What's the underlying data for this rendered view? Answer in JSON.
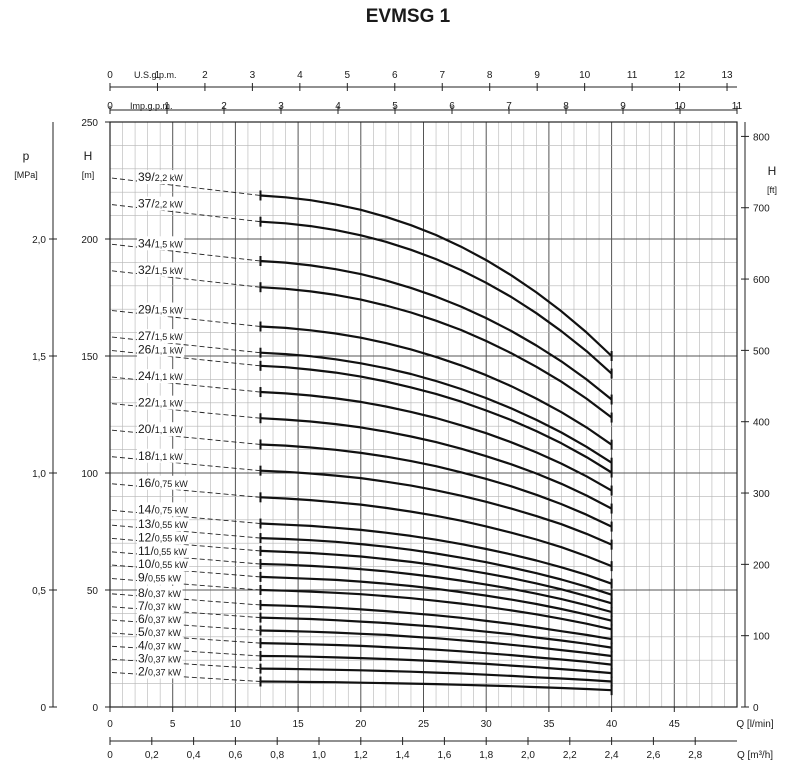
{
  "chart_data": {
    "type": "line",
    "title": "EVMSG 1",
    "x": [
      12,
      14,
      16,
      18,
      20,
      22,
      24,
      26,
      28,
      30,
      32,
      34,
      36,
      38,
      40
    ],
    "xlim": [
      0,
      50
    ],
    "xticks": [
      0,
      5,
      10,
      15,
      20,
      25,
      30,
      35,
      40,
      45
    ],
    "xlabel": "Q [l/min]",
    "ylim": [
      0,
      250
    ],
    "yticks": [
      0,
      50,
      100,
      150,
      200,
      250
    ],
    "ylabel": "H",
    "ylabel_unit": "[m]",
    "grid": true,
    "series": [
      {
        "name": "2/0,37 kW",
        "label_main": "2/",
        "label_power": "0,37 kW",
        "values": [
          10.9,
          10.8,
          10.7,
          10.6,
          10.4,
          10.2,
          10,
          9.8,
          9.5,
          9.2,
          8.9,
          8.5,
          8.1,
          7.7,
          7.2
        ]
      },
      {
        "name": "3/0,37 kW",
        "label_main": "3/",
        "label_power": "0,37 kW",
        "values": [
          16.4,
          16.3,
          16.1,
          15.9,
          15.7,
          15.4,
          15.1,
          14.7,
          14.3,
          13.8,
          13.3,
          12.7,
          12.2,
          11.6,
          10.9
        ]
      },
      {
        "name": "4/0,37 kW",
        "label_main": "4/",
        "label_power": "0,37 kW",
        "values": [
          21.8,
          21.7,
          21.5,
          21.2,
          20.9,
          20.5,
          20.1,
          19.6,
          19,
          18.4,
          17.7,
          17,
          16.2,
          15.4,
          14.5
        ]
      },
      {
        "name": "5/0,37 kW",
        "label_main": "5/",
        "label_power": "0,37 kW",
        "values": [
          27.3,
          27.1,
          26.8,
          26.5,
          26.1,
          25.6,
          25.1,
          24.5,
          23.8,
          23,
          22.2,
          21.2,
          20.3,
          19.3,
          18.1
        ]
      },
      {
        "name": "6/0,37 kW",
        "label_main": "6/",
        "label_power": "0,37 kW",
        "values": [
          32.7,
          32.5,
          32.2,
          31.8,
          31.3,
          30.8,
          30.1,
          29.4,
          28.5,
          27.6,
          26.6,
          25.5,
          24.3,
          23.1,
          21.8
        ]
      },
      {
        "name": "7/0,37 kW",
        "label_main": "7/",
        "label_power": "0,37 kW",
        "values": [
          38.2,
          37.9,
          37.6,
          37.1,
          36.5,
          35.9,
          35.1,
          34.3,
          33.3,
          32.2,
          31.1,
          29.7,
          28.4,
          27,
          25.4
        ]
      },
      {
        "name": "8/0,37 kW",
        "label_main": "8/",
        "label_power": "0,37 kW",
        "values": [
          43.6,
          43.3,
          42.9,
          42.4,
          41.7,
          41,
          40.1,
          39.2,
          38.1,
          36.8,
          35.5,
          34,
          32.4,
          30.8,
          29
        ]
      },
      {
        "name": "9/0,55 kW",
        "label_main": "9/",
        "label_power": "0,55 kW",
        "values": [
          50,
          49.7,
          49.3,
          48.8,
          48.2,
          47.4,
          46.5,
          45.4,
          44.2,
          42.8,
          41.3,
          39.6,
          37.7,
          35.6,
          33.2
        ]
      },
      {
        "name": "10/0,55 kW",
        "label_main": "10/",
        "label_power": "0,55 kW",
        "values": [
          55.6,
          55.2,
          54.8,
          54.3,
          53.6,
          52.7,
          51.7,
          50.5,
          49.1,
          47.6,
          45.9,
          44,
          41.9,
          39.5,
          36.9
        ]
      },
      {
        "name": "11/0,55 kW",
        "label_main": "11/",
        "label_power": "0,55 kW",
        "values": [
          61.1,
          60.8,
          60.3,
          59.7,
          58.9,
          58,
          56.8,
          55.5,
          54,
          52.3,
          50.5,
          48.4,
          46.1,
          43.5,
          40.6
        ]
      },
      {
        "name": "12/0,55 kW",
        "label_main": "12/",
        "label_power": "0,55 kW",
        "values": [
          66.7,
          66.3,
          65.8,
          65.1,
          64.3,
          63.2,
          62,
          60.6,
          58.9,
          57.1,
          55.1,
          52.8,
          50.3,
          47.4,
          44.3
        ]
      },
      {
        "name": "13/0,55 kW",
        "label_main": "13/",
        "label_power": "0,55 kW",
        "values": [
          72.2,
          71.8,
          71.3,
          70.6,
          69.6,
          68.5,
          67.2,
          65.6,
          63.8,
          61.9,
          59.6,
          57.2,
          54.5,
          51.4,
          48
        ]
      },
      {
        "name": "14/0,75 kW",
        "label_main": "14/",
        "label_power": "0,75 kW",
        "values": [
          78.4,
          77.9,
          77.4,
          76.6,
          75.7,
          74.5,
          73.1,
          71.5,
          69.6,
          67.5,
          65.2,
          62.6,
          59.7,
          56.5,
          52.7
        ]
      },
      {
        "name": "16/0,75 kW",
        "label_main": "16/",
        "label_power": "0,75 kW",
        "values": [
          89.6,
          89.1,
          88.4,
          87.5,
          86.5,
          85.1,
          83.5,
          81.7,
          79.6,
          77.2,
          74.5,
          71.6,
          68.3,
          64.5,
          60.2
        ]
      },
      {
        "name": "18/1,1 kW",
        "label_main": "18/",
        "label_power": "1,1 kW",
        "values": [
          101,
          100.5,
          99.8,
          98.9,
          97.8,
          96.3,
          94.6,
          92.6,
          90.3,
          87.7,
          84.8,
          81.6,
          78.1,
          74,
          69.4
        ]
      },
      {
        "name": "20/1,1 kW",
        "label_main": "20/",
        "label_power": "1,1 kW",
        "values": [
          112.2,
          111.7,
          110.9,
          109.9,
          108.6,
          107,
          105.1,
          102.9,
          100.3,
          97.5,
          94.3,
          90.7,
          86.7,
          82.2,
          77.1
        ]
      },
      {
        "name": "22/1,1 kW",
        "label_main": "22/",
        "label_power": "1,1 kW",
        "values": [
          123.4,
          122.8,
          122,
          120.9,
          119.5,
          117.7,
          115.6,
          113.2,
          110.4,
          107.2,
          103.7,
          99.8,
          95.4,
          90.4,
          84.8
        ]
      },
      {
        "name": "24/1,1 kW",
        "label_main": "24/",
        "label_power": "1,1 kW",
        "values": [
          134.6,
          134,
          133.1,
          131.9,
          130.4,
          128.4,
          126.1,
          123.5,
          120.4,
          117,
          113.1,
          108.8,
          104,
          98.6,
          92.5
        ]
      },
      {
        "name": "26/1,1 kW",
        "label_main": "26/",
        "label_power": "1,1 kW",
        "values": [
          145.8,
          145.2,
          144.2,
          142.9,
          141.2,
          139.1,
          136.6,
          133.8,
          130.5,
          126.7,
          122.6,
          117.9,
          112.7,
          106.8,
          100.2
        ]
      },
      {
        "name": "27/1,5 kW",
        "label_main": "27/",
        "label_power": "1,5 kW",
        "values": [
          151.4,
          150.8,
          149.9,
          148.6,
          146.9,
          144.8,
          142.3,
          139.3,
          135.9,
          132,
          127.6,
          122.7,
          117.3,
          111.2,
          104.4
        ]
      },
      {
        "name": "29/1,5 kW",
        "label_main": "29/",
        "label_power": "1,5 kW",
        "values": [
          162.6,
          162,
          161,
          159.6,
          157.8,
          155.5,
          152.8,
          149.6,
          146,
          141.8,
          137.1,
          131.8,
          126,
          119.5,
          112.1
        ]
      },
      {
        "name": "32/1,5 kW",
        "label_main": "32/",
        "label_power": "1,5 kW",
        "values": [
          179.4,
          178.7,
          177.6,
          176.1,
          174.1,
          171.6,
          168.6,
          165.1,
          161.1,
          156.4,
          151.2,
          145.4,
          139,
          131.8,
          123.7
        ]
      },
      {
        "name": "34/1,5 kW",
        "label_main": "34/",
        "label_power": "1,5 kW",
        "values": [
          190.6,
          189.9,
          188.7,
          187.1,
          185,
          182.3,
          179.1,
          175.4,
          171.1,
          166.2,
          160.7,
          154.5,
          147.7,
          140,
          131.4
        ]
      },
      {
        "name": "37/2,2 kW",
        "label_main": "37/",
        "label_power": "2,2 kW",
        "values": [
          207.4,
          206.7,
          205.5,
          203.8,
          201.6,
          198.8,
          195.4,
          191.4,
          186.7,
          181.3,
          175.2,
          168.3,
          160.6,
          152.1,
          142.5
        ]
      },
      {
        "name": "39/2,2 kW",
        "label_main": "39/",
        "label_power": "2,2 kW",
        "values": [
          218.6,
          217.8,
          216.6,
          214.8,
          212.5,
          209.5,
          205.9,
          201.7,
          196.7,
          191,
          184.5,
          177.2,
          169.1,
          160.1,
          150
        ]
      }
    ],
    "axes": {
      "left_p": {
        "label": "p",
        "unit": "[MPa]",
        "ticks": [
          "0",
          "0,5",
          "1,0",
          "1,5",
          "2,0"
        ],
        "tick_values": [
          0,
          0.5,
          1.0,
          1.5,
          2.0
        ],
        "max": 2.5
      },
      "left_h": {
        "label": "H",
        "unit": "[m]",
        "ticks": [
          "0",
          "50",
          "100",
          "150",
          "200",
          "250"
        ]
      },
      "right_ft": {
        "label": "H",
        "unit": "[ft]",
        "ticks": [
          "0",
          "100",
          "200",
          "300",
          "400",
          "500",
          "600",
          "700",
          "800"
        ],
        "tick_values": [
          0,
          100,
          200,
          300,
          400,
          500,
          600,
          700,
          800
        ],
        "max": 820.2
      },
      "top_us": {
        "label": "U.S.g.p.m.",
        "ticks": [
          "0",
          "1",
          "2",
          "3",
          "4",
          "5",
          "6",
          "7",
          "8",
          "9",
          "10",
          "11",
          "12",
          "13"
        ],
        "tick_values": [
          0,
          1,
          2,
          3,
          4,
          5,
          6,
          7,
          8,
          9,
          10,
          11,
          12,
          13
        ],
        "max": 13.21
      },
      "top_imp": {
        "label": "Imp.g.p.m.",
        "ticks": [
          "0",
          "1",
          "2",
          "3",
          "4",
          "5",
          "6",
          "7",
          "8",
          "9",
          "10",
          "11"
        ],
        "tick_values": [
          0,
          1,
          2,
          3,
          4,
          5,
          6,
          7,
          8,
          9,
          10,
          11
        ],
        "max": 11.0
      },
      "bottom_lmin": {
        "label": "Q [l/min]",
        "ticks": [
          "0",
          "5",
          "10",
          "15",
          "20",
          "25",
          "30",
          "35",
          "40",
          "45"
        ]
      },
      "bottom_m3h": {
        "label": "Q [m³/h]",
        "ticks": [
          "0",
          "0,2",
          "0,4",
          "0,6",
          "0,8",
          "1,0",
          "1,2",
          "1,4",
          "1,6",
          "1,8",
          "2,0",
          "2,2",
          "2,4",
          "2,6",
          "2,8"
        ],
        "tick_values": [
          0,
          0.2,
          0.4,
          0.6,
          0.8,
          1.0,
          1.2,
          1.4,
          1.6,
          1.8,
          2.0,
          2.2,
          2.4,
          2.6,
          2.8
        ],
        "max": 3.0
      }
    }
  }
}
